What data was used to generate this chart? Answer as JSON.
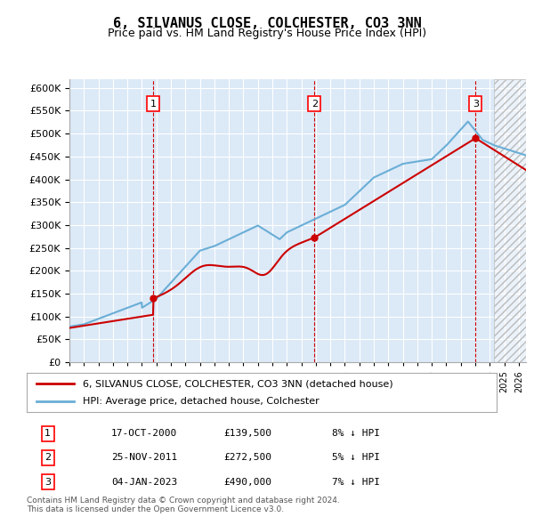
{
  "title": "6, SILVANUS CLOSE, COLCHESTER, CO3 3NN",
  "subtitle": "Price paid vs. HM Land Registry's House Price Index (HPI)",
  "ylim": [
    0,
    620000
  ],
  "yticks": [
    0,
    50000,
    100000,
    150000,
    200000,
    250000,
    300000,
    350000,
    400000,
    450000,
    500000,
    550000,
    600000
  ],
  "xlim_start": 1995.0,
  "xlim_end": 2026.5,
  "chart_bg_color": "#dce9f7",
  "grid_color": "#ffffff",
  "sale_dates": [
    2000.79,
    2011.9,
    2023.02
  ],
  "sale_prices": [
    139500,
    272500,
    490000
  ],
  "sale_labels": [
    "1",
    "2",
    "3"
  ],
  "hpi_line_color": "#6aaed6",
  "price_line_color": "#cc0000",
  "sale_marker_color": "#cc0000",
  "sale_vline_color": "#cc0000",
  "legend_entries": [
    "6, SILVANUS CLOSE, COLCHESTER, CO3 3NN (detached house)",
    "HPI: Average price, detached house, Colchester"
  ],
  "table_rows": [
    [
      "1",
      "17-OCT-2000",
      "£139,500",
      "8% ↓ HPI"
    ],
    [
      "2",
      "25-NOV-2011",
      "£272,500",
      "5% ↓ HPI"
    ],
    [
      "3",
      "04-JAN-2023",
      "£490,000",
      "7% ↓ HPI"
    ]
  ],
  "footnote": "Contains HM Land Registry data © Crown copyright and database right 2024.\nThis data is licensed under the Open Government Licence v3.0.",
  "future_cutoff": 2024.3
}
